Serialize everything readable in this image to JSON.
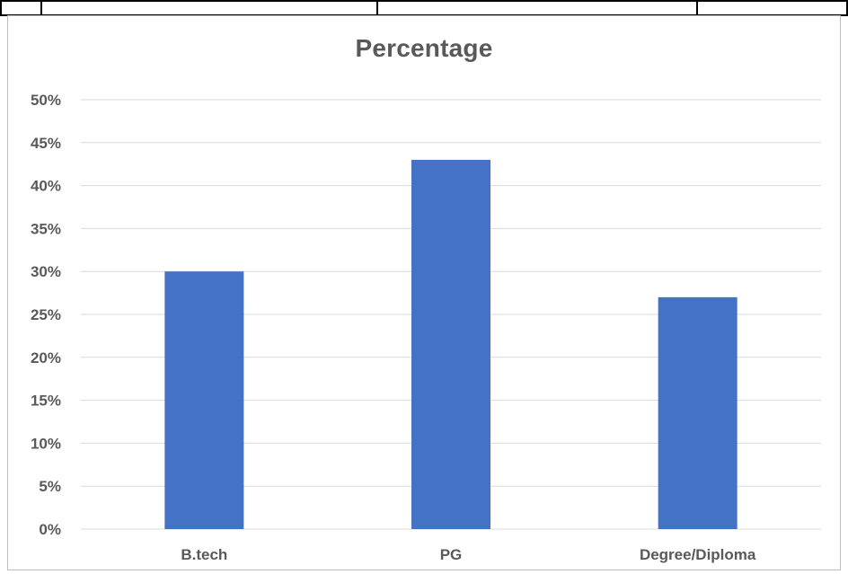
{
  "chart_data": {
    "type": "bar",
    "title": "Percentage",
    "xlabel": "",
    "ylabel": "",
    "categories": [
      "B.tech",
      "PG",
      "Degree/Diploma"
    ],
    "values": [
      30,
      43,
      27
    ],
    "ylim": [
      0,
      50
    ],
    "y_ticks": [
      "0%",
      "5%",
      "10%",
      "15%",
      "20%",
      "25%",
      "30%",
      "35%",
      "40%",
      "45%",
      "50%"
    ],
    "grid": true,
    "legend": "none",
    "bar_color": "#4472C4",
    "gridline_color": "#D9D9D9"
  }
}
